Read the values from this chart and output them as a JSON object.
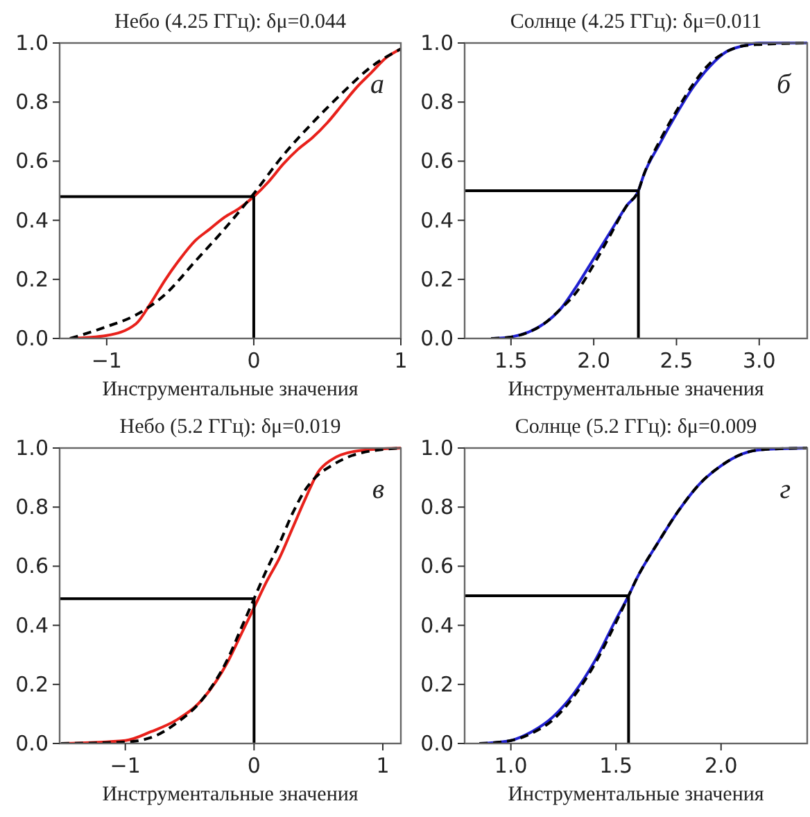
{
  "chart_data": [
    {
      "type": "line",
      "title": "Небо (4.25 ГГц): δμ=0.044",
      "xlabel": "Инструментальные значения",
      "annotations": [
        "а"
      ],
      "xlim": [
        -1.32,
        1.0
      ],
      "ylim": [
        0,
        1
      ],
      "xticks": [
        {
          "value": -1,
          "label": "−1"
        },
        {
          "value": 0,
          "label": "0"
        },
        {
          "value": 1,
          "label": "1"
        }
      ],
      "yticks": [
        {
          "value": 0,
          "label": "0.0"
        },
        {
          "value": 0.2,
          "label": "0.2"
        },
        {
          "value": 0.4,
          "label": "0.4"
        },
        {
          "value": 0.6,
          "label": "0.6"
        },
        {
          "value": 0.8,
          "label": "0.8"
        },
        {
          "value": 1,
          "label": "1.0"
        }
      ],
      "grid": false,
      "marker": "none",
      "series": [
        {
          "color": "#e8211b",
          "line_style": "solid",
          "x": [
            -1.25,
            -1.0,
            -0.8,
            -0.7,
            -0.6,
            -0.5,
            -0.4,
            -0.3,
            -0.2,
            -0.1,
            0,
            0.1,
            0.2,
            0.3,
            0.4,
            0.5,
            0.6,
            0.7,
            0.8,
            0.9,
            1.0
          ],
          "values": [
            0,
            0.01,
            0.05,
            0.12,
            0.2,
            0.27,
            0.33,
            0.37,
            0.41,
            0.44,
            0.48,
            0.53,
            0.59,
            0.64,
            0.68,
            0.73,
            0.79,
            0.85,
            0.9,
            0.95,
            0.98
          ]
        },
        {
          "color": "#000000",
          "line_style": "dashed",
          "x": [
            -1.25,
            -1.0,
            -0.8,
            -0.6,
            -0.4,
            -0.2,
            0,
            0.2,
            0.4,
            0.6,
            0.8,
            1.0
          ],
          "values": [
            0,
            0.04,
            0.08,
            0.15,
            0.26,
            0.37,
            0.49,
            0.62,
            0.73,
            0.83,
            0.92,
            0.98
          ]
        },
        {
          "color": "#000000",
          "line_style": "solid",
          "x": [
            -1.32,
            0,
            0
          ],
          "values": [
            0.48,
            0.48,
            0
          ]
        }
      ]
    },
    {
      "type": "line",
      "title": "Солнце (4.25 ГГц): δμ=0.011",
      "xlabel": "Инструментальные значения",
      "annotations": [
        "б"
      ],
      "xlim": [
        1.22,
        3.29
      ],
      "ylim": [
        0,
        1
      ],
      "xticks": [
        {
          "value": 1.5,
          "label": "1.5"
        },
        {
          "value": 2,
          "label": "2.0"
        },
        {
          "value": 2.5,
          "label": "2.5"
        },
        {
          "value": 3,
          "label": "3.0"
        }
      ],
      "yticks": [
        {
          "value": 0,
          "label": "0.0"
        },
        {
          "value": 0.2,
          "label": "0.2"
        },
        {
          "value": 0.4,
          "label": "0.4"
        },
        {
          "value": 0.6,
          "label": "0.6"
        },
        {
          "value": 0.8,
          "label": "0.8"
        },
        {
          "value": 1,
          "label": "1.0"
        }
      ],
      "grid": false,
      "marker": "none",
      "series": [
        {
          "color": "#2020d0",
          "line_style": "solid",
          "x": [
            1.38,
            1.5,
            1.6,
            1.7,
            1.8,
            1.9,
            2.0,
            2.1,
            2.2,
            2.27,
            2.3,
            2.4,
            2.5,
            2.6,
            2.7,
            2.8,
            2.9,
            3.0,
            3.29
          ],
          "values": [
            0,
            0.005,
            0.02,
            0.05,
            0.1,
            0.18,
            0.27,
            0.36,
            0.45,
            0.5,
            0.55,
            0.66,
            0.76,
            0.85,
            0.92,
            0.97,
            0.99,
            1.0,
            1.0
          ]
        },
        {
          "color": "#000000",
          "line_style": "dashed",
          "x": [
            1.38,
            1.5,
            1.6,
            1.7,
            1.8,
            1.9,
            2.0,
            2.1,
            2.2,
            2.27,
            2.3,
            2.4,
            2.5,
            2.6,
            2.7,
            2.8,
            2.9,
            3.0,
            3.29
          ],
          "values": [
            0,
            0.005,
            0.02,
            0.05,
            0.1,
            0.16,
            0.25,
            0.35,
            0.45,
            0.5,
            0.55,
            0.67,
            0.77,
            0.86,
            0.93,
            0.97,
            0.99,
            0.995,
            1.0
          ]
        },
        {
          "color": "#000000",
          "line_style": "solid",
          "x": [
            1.22,
            2.27,
            2.27
          ],
          "values": [
            0.5,
            0.5,
            0
          ]
        }
      ]
    },
    {
      "type": "line",
      "title": "Небо (5.2 ГГц): δμ=0.019",
      "xlabel": "Инструментальные значения",
      "annotations": [
        "в"
      ],
      "xlim": [
        -1.51,
        1.14
      ],
      "ylim": [
        0,
        1
      ],
      "xticks": [
        {
          "value": -1,
          "label": "−1"
        },
        {
          "value": 0,
          "label": "0"
        },
        {
          "value": 1,
          "label": "1"
        }
      ],
      "yticks": [
        {
          "value": 0,
          "label": "0.0"
        },
        {
          "value": 0.2,
          "label": "0.2"
        },
        {
          "value": 0.4,
          "label": "0.4"
        },
        {
          "value": 0.6,
          "label": "0.6"
        },
        {
          "value": 0.8,
          "label": "0.8"
        },
        {
          "value": 1,
          "label": "1.0"
        }
      ],
      "grid": false,
      "marker": "none",
      "series": [
        {
          "color": "#e8211b",
          "line_style": "solid",
          "x": [
            -1.5,
            -1.0,
            -0.8,
            -0.6,
            -0.4,
            -0.2,
            -0.1,
            0,
            0.1,
            0.2,
            0.3,
            0.4,
            0.5,
            0.6,
            0.8,
            1.14
          ],
          "values": [
            0,
            0.01,
            0.04,
            0.08,
            0.15,
            0.28,
            0.37,
            0.46,
            0.55,
            0.63,
            0.73,
            0.83,
            0.92,
            0.96,
            0.99,
            1.0
          ]
        },
        {
          "color": "#000000",
          "line_style": "dashed",
          "x": [
            -1.5,
            -1.0,
            -0.8,
            -0.6,
            -0.4,
            -0.2,
            -0.1,
            0,
            0.1,
            0.2,
            0.3,
            0.4,
            0.5,
            0.6,
            0.8,
            1.14
          ],
          "values": [
            0,
            0.005,
            0.02,
            0.07,
            0.15,
            0.29,
            0.39,
            0.49,
            0.59,
            0.68,
            0.78,
            0.86,
            0.91,
            0.94,
            0.98,
            1.0
          ]
        },
        {
          "color": "#000000",
          "line_style": "solid",
          "x": [
            -1.51,
            0,
            0
          ],
          "values": [
            0.49,
            0.49,
            0
          ]
        }
      ]
    },
    {
      "type": "line",
      "title": "Солнце (5.2 ГГц): δμ=0.009",
      "xlabel": "Инструментальные значения",
      "annotations": [
        "г"
      ],
      "xlim": [
        0.78,
        2.41
      ],
      "ylim": [
        0,
        1
      ],
      "xticks": [
        {
          "value": 1,
          "label": "1.0"
        },
        {
          "value": 1.5,
          "label": "1.5"
        },
        {
          "value": 2,
          "label": "2.0"
        }
      ],
      "yticks": [
        {
          "value": 0,
          "label": "0.0"
        },
        {
          "value": 0.2,
          "label": "0.2"
        },
        {
          "value": 0.4,
          "label": "0.4"
        },
        {
          "value": 0.6,
          "label": "0.6"
        },
        {
          "value": 0.8,
          "label": "0.8"
        },
        {
          "value": 1,
          "label": "1.0"
        }
      ],
      "grid": false,
      "marker": "none",
      "series": [
        {
          "color": "#2020d0",
          "line_style": "solid",
          "x": [
            0.85,
            0.95,
            1.0,
            1.1,
            1.2,
            1.3,
            1.4,
            1.5,
            1.56,
            1.6,
            1.7,
            1.8,
            1.9,
            2.0,
            2.1,
            2.2,
            2.41
          ],
          "values": [
            0,
            0.005,
            0.01,
            0.04,
            0.09,
            0.17,
            0.28,
            0.42,
            0.5,
            0.56,
            0.68,
            0.79,
            0.88,
            0.94,
            0.98,
            0.995,
            1.0
          ]
        },
        {
          "color": "#000000",
          "line_style": "dashed",
          "x": [
            0.85,
            1.0,
            1.1,
            1.2,
            1.3,
            1.4,
            1.5,
            1.56,
            1.6,
            1.7,
            1.8,
            1.9,
            2.0,
            2.1,
            2.2,
            2.41
          ],
          "values": [
            0,
            0.01,
            0.035,
            0.08,
            0.16,
            0.27,
            0.41,
            0.5,
            0.56,
            0.68,
            0.79,
            0.88,
            0.94,
            0.98,
            0.995,
            1.0
          ]
        },
        {
          "color": "#000000",
          "line_style": "solid",
          "x": [
            0.78,
            1.56,
            1.56
          ],
          "values": [
            0.5,
            0.5,
            0
          ]
        }
      ]
    }
  ]
}
